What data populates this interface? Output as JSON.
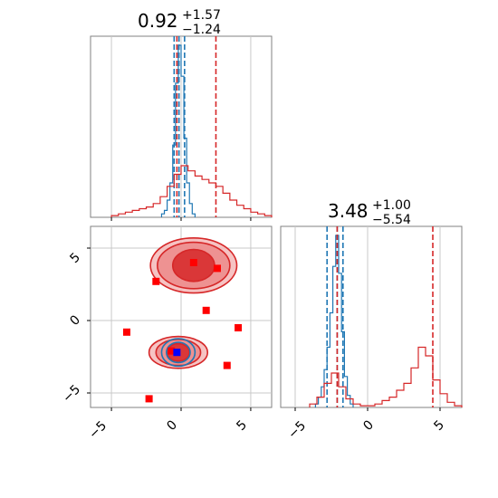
{
  "chart_data": [
    {
      "type": "histogram",
      "panel": "top-left",
      "title": {
        "main": "0.92",
        "plus": "+1.57",
        "minus": "−1.24"
      },
      "xlim": [
        -6.5,
        6.5
      ],
      "grid": true,
      "series": [
        {
          "name": "blue",
          "color": "#1f77b4",
          "hist": [
            [
              -1.4,
              -1.2,
              0.02
            ],
            [
              -1.2,
              -1.0,
              0.04
            ],
            [
              -1.0,
              -0.8,
              0.1
            ],
            [
              -0.8,
              -0.6,
              0.2
            ],
            [
              -0.6,
              -0.4,
              0.42
            ],
            [
              -0.4,
              -0.2,
              0.78
            ],
            [
              -0.2,
              0.0,
              1.0
            ],
            [
              0.0,
              0.2,
              0.82
            ],
            [
              0.2,
              0.4,
              0.46
            ],
            [
              0.4,
              0.6,
              0.2
            ],
            [
              0.6,
              0.8,
              0.08
            ],
            [
              0.8,
              1.0,
              0.02
            ]
          ],
          "quantile_lines": [
            -0.5,
            -0.15,
            0.25
          ]
        },
        {
          "name": "red",
          "color": "#d62728",
          "hist": [
            [
              -5.0,
              -4.5,
              0.01
            ],
            [
              -4.5,
              -4.0,
              0.02
            ],
            [
              -4.0,
              -3.5,
              0.03
            ],
            [
              -3.5,
              -3.0,
              0.04
            ],
            [
              -3.0,
              -2.5,
              0.05
            ],
            [
              -2.5,
              -2.0,
              0.06
            ],
            [
              -2.0,
              -1.5,
              0.08
            ],
            [
              -1.5,
              -1.0,
              0.12
            ],
            [
              -1.0,
              -0.5,
              0.18
            ],
            [
              -0.5,
              0.0,
              0.25
            ],
            [
              0.0,
              0.5,
              0.3
            ],
            [
              0.5,
              1.0,
              0.27
            ],
            [
              1.0,
              1.5,
              0.24
            ],
            [
              1.5,
              2.0,
              0.22
            ],
            [
              2.0,
              2.5,
              0.2
            ],
            [
              2.5,
              3.0,
              0.18
            ],
            [
              3.0,
              3.5,
              0.14
            ],
            [
              3.5,
              4.0,
              0.1
            ],
            [
              4.0,
              4.5,
              0.07
            ],
            [
              4.5,
              5.0,
              0.05
            ],
            [
              5.0,
              5.5,
              0.03
            ],
            [
              5.5,
              6.0,
              0.02
            ],
            [
              6.0,
              6.5,
              0.01
            ]
          ],
          "quantile_lines": [
            -0.3,
            2.5
          ]
        }
      ]
    },
    {
      "type": "scatter",
      "panel": "bottom-left",
      "xlim": [
        -6.5,
        6.5
      ],
      "ylim": [
        -6,
        6.5
      ],
      "xticks": [
        "−5",
        "0",
        "5"
      ],
      "yticks": [
        "5",
        "0",
        "−5"
      ],
      "grid": true,
      "contours": [
        {
          "color": "#d62728",
          "center": [
            0.9,
            3.8
          ],
          "levels": [
            [
              3.1,
              1.9
            ],
            [
              2.6,
              1.6
            ],
            [
              1.5,
              1.1
            ]
          ]
        },
        {
          "color": "#d62728",
          "center": [
            -0.2,
            -2.2
          ],
          "levels": [
            [
              2.1,
              1.1
            ],
            [
              1.6,
              0.9
            ],
            [
              0.8,
              0.6
            ]
          ]
        },
        {
          "color": "#1f77b4",
          "center": [
            -0.2,
            -2.2
          ],
          "levels": [
            [
              1.2,
              0.95
            ],
            [
              0.85,
              0.7
            ]
          ]
        }
      ],
      "points_red": [
        [
          0.9,
          4.0
        ],
        [
          2.6,
          3.6
        ],
        [
          -1.8,
          2.7
        ],
        [
          1.8,
          0.7
        ],
        [
          4.1,
          -0.5
        ],
        [
          -3.9,
          -0.8
        ],
        [
          -0.7,
          -2.1
        ],
        [
          3.3,
          -3.1
        ],
        [
          -2.3,
          -5.4
        ]
      ],
      "points_blue": [
        [
          -0.3,
          -2.2
        ]
      ]
    },
    {
      "type": "histogram",
      "panel": "bottom-right",
      "title": {
        "main": "3.48",
        "plus": "+1.00",
        "minus": "−5.54"
      },
      "xlim": [
        -6,
        6.5
      ],
      "xticks": [
        "−5",
        "0",
        "5"
      ],
      "grid": true,
      "series": [
        {
          "name": "blue",
          "color": "#1f77b4",
          "hist": [
            [
              -3.6,
              -3.4,
              0.02
            ],
            [
              -3.4,
              -3.2,
              0.06
            ],
            [
              -3.2,
              -3.0,
              0.12
            ],
            [
              -3.0,
              -2.8,
              0.22
            ],
            [
              -2.8,
              -2.6,
              0.35
            ],
            [
              -2.6,
              -2.4,
              0.55
            ],
            [
              -2.4,
              -2.2,
              0.82
            ],
            [
              -2.2,
              -2.0,
              1.0
            ],
            [
              -2.0,
              -1.8,
              0.78
            ],
            [
              -1.8,
              -1.6,
              0.44
            ],
            [
              -1.6,
              -1.4,
              0.18
            ],
            [
              -1.4,
              -1.2,
              0.07
            ],
            [
              -1.2,
              -1.0,
              0.02
            ]
          ],
          "quantile_lines": [
            -2.8,
            -2.1,
            -1.7
          ]
        },
        {
          "name": "red",
          "color": "#d62728",
          "hist": [
            [
              -4.0,
              -3.5,
              0.02
            ],
            [
              -3.5,
              -3.0,
              0.06
            ],
            [
              -3.0,
              -2.5,
              0.14
            ],
            [
              -2.5,
              -2.0,
              0.2
            ],
            [
              -2.0,
              -1.5,
              0.12
            ],
            [
              -1.5,
              -1.0,
              0.05
            ],
            [
              -1.0,
              -0.5,
              0.02
            ],
            [
              -0.5,
              0.0,
              0.01
            ],
            [
              0.0,
              0.5,
              0.01
            ],
            [
              0.5,
              1.0,
              0.02
            ],
            [
              1.0,
              1.5,
              0.04
            ],
            [
              1.5,
              2.0,
              0.06
            ],
            [
              2.0,
              2.5,
              0.1
            ],
            [
              2.5,
              3.0,
              0.14
            ],
            [
              3.0,
              3.5,
              0.23
            ],
            [
              3.5,
              4.0,
              0.35
            ],
            [
              4.0,
              4.5,
              0.3
            ],
            [
              4.5,
              5.0,
              0.16
            ],
            [
              5.0,
              5.5,
              0.08
            ],
            [
              5.5,
              6.0,
              0.03
            ],
            [
              6.0,
              6.5,
              0.01
            ]
          ],
          "quantile_lines": [
            -2.1,
            4.5
          ]
        }
      ]
    }
  ]
}
